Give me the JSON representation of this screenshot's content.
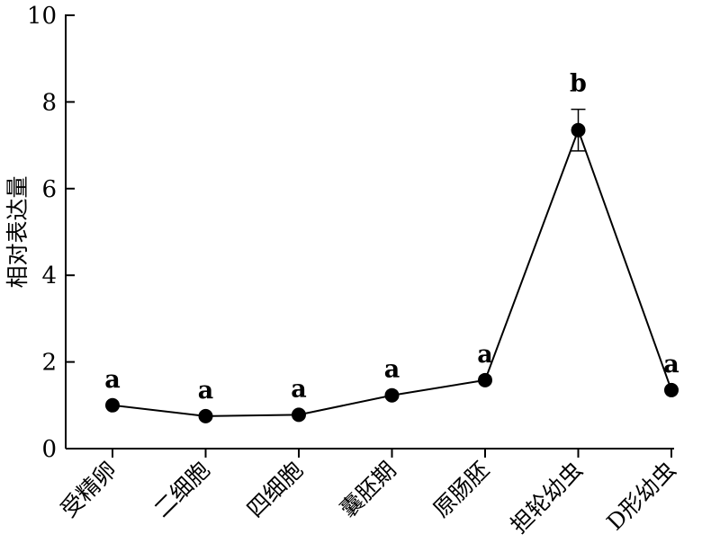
{
  "chart_data": {
    "type": "line",
    "title": "",
    "xlabel": "",
    "ylabel": "相对表达量",
    "ylim": [
      0,
      10
    ],
    "yticks": [
      0,
      2,
      4,
      6,
      8,
      10
    ],
    "grid": false,
    "categories": [
      "受精卵",
      "二细胞",
      "四细胞",
      "囊胚期",
      "原肠胚",
      "担轮幼虫",
      "D形幼虫"
    ],
    "series": [
      {
        "values": [
          1.0,
          0.75,
          0.78,
          1.23,
          1.58,
          7.35,
          1.35
        ],
        "error": [
          0,
          0,
          0,
          0,
          0,
          0.48,
          0
        ],
        "significance": [
          "a",
          "a",
          "a",
          "a",
          "a",
          "b",
          "a"
        ],
        "color": "#000000"
      }
    ]
  }
}
